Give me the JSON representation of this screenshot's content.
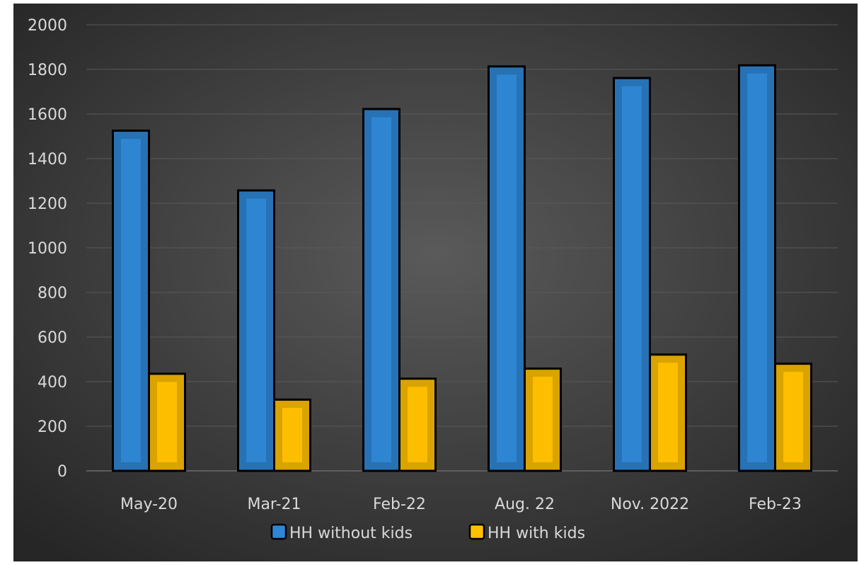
{
  "chart_data": {
    "type": "bar",
    "categories": [
      "May-20",
      "Mar-21",
      "Feb-22",
      "Aug. 22",
      "Nov. 2022",
      "Feb-23"
    ],
    "series": [
      {
        "name": "HH without kids",
        "values": [
          1530,
          1262,
          1627,
          1818,
          1766,
          1823
        ],
        "color": "#2e86d4"
      },
      {
        "name": "HH with kids",
        "values": [
          440,
          324,
          418,
          463,
          526,
          485
        ],
        "color": "#ffc000"
      }
    ],
    "ylim": [
      0,
      2000
    ],
    "yticks": [
      0,
      200,
      400,
      600,
      800,
      1000,
      1200,
      1400,
      1600,
      1800,
      2000
    ],
    "grid": true,
    "legend_position": "bottom",
    "background": "#404040"
  }
}
